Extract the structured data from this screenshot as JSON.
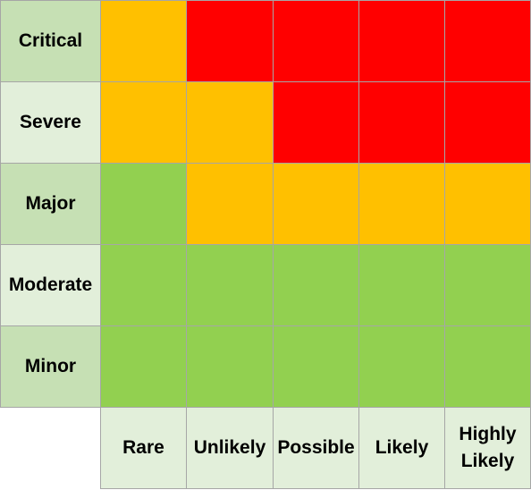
{
  "chart_data": {
    "type": "heatmap",
    "title": "",
    "xlabel": "",
    "ylabel": "",
    "x_categories": [
      "Rare",
      "Unlikely",
      "Possible",
      "Likely",
      "Highly\nLikely"
    ],
    "y_categories": [
      "Critical",
      "Severe",
      "Major",
      "Moderate",
      "Minor"
    ],
    "levels": {
      "low": "#92d050",
      "medium": "#ffc000",
      "high": "#ff0000"
    },
    "label_colors": {
      "dark": "#c6e0b4",
      "light": "#e2efda"
    },
    "grid": [
      [
        "medium",
        "high",
        "high",
        "high",
        "high"
      ],
      [
        "medium",
        "medium",
        "high",
        "high",
        "high"
      ],
      [
        "low",
        "medium",
        "medium",
        "medium",
        "medium"
      ],
      [
        "low",
        "low",
        "low",
        "low",
        "low"
      ],
      [
        "low",
        "low",
        "low",
        "low",
        "low"
      ]
    ]
  }
}
